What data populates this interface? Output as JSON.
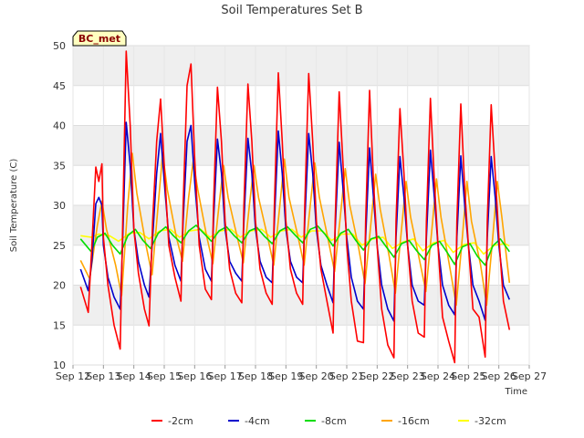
{
  "chart_data": {
    "type": "line",
    "title": "Soil Temperatures Set B",
    "xlabel": "Time",
    "ylabel": "Soil Temperature (C)",
    "ylim": [
      10,
      50
    ],
    "y_ticks": [
      10,
      15,
      20,
      25,
      30,
      35,
      40,
      45,
      50
    ],
    "xlim": [
      12,
      27
    ],
    "x_ticks": [
      12,
      13,
      14,
      15,
      16,
      17,
      18,
      19,
      20,
      21,
      22,
      23,
      24,
      25,
      26,
      27
    ],
    "x_tick_labels": [
      "Sep 12",
      "Sep 13",
      "Sep 14",
      "Sep 15",
      "Sep 16",
      "Sep 17",
      "Sep 18",
      "Sep 19",
      "Sep 20",
      "Sep 21",
      "Sep 22",
      "Sep 23",
      "Sep 24",
      "Sep 25",
      "Sep 26",
      "Sep 27"
    ],
    "grid": true,
    "legend_position": "bottom",
    "badge": "BC_met",
    "series": [
      {
        "name": "-2cm",
        "color": "#ff0000",
        "x": [
          12.25,
          12.5,
          12.62,
          12.75,
          12.85,
          12.95,
          13.0,
          13.15,
          13.35,
          13.55,
          13.62,
          13.75,
          13.88,
          14.0,
          14.15,
          14.35,
          14.5,
          14.62,
          14.75,
          14.88,
          15.0,
          15.15,
          15.35,
          15.55,
          15.62,
          15.75,
          15.88,
          16.0,
          16.15,
          16.35,
          16.55,
          16.62,
          16.75,
          16.88,
          17.0,
          17.15,
          17.35,
          17.55,
          17.62,
          17.75,
          17.88,
          18.0,
          18.15,
          18.35,
          18.55,
          18.62,
          18.75,
          18.88,
          19.0,
          19.15,
          19.35,
          19.55,
          19.62,
          19.75,
          19.88,
          20.0,
          20.15,
          20.35,
          20.55,
          20.62,
          20.75,
          20.88,
          21.0,
          21.15,
          21.35,
          21.55,
          21.62,
          21.75,
          21.88,
          22.0,
          22.15,
          22.35,
          22.55,
          22.62,
          22.75,
          22.88,
          23.0,
          23.15,
          23.35,
          23.55,
          23.62,
          23.75,
          23.88,
          24.0,
          24.15,
          24.35,
          24.55,
          24.62,
          24.75,
          24.88,
          25.0,
          25.15,
          25.35,
          25.55,
          25.62,
          25.75,
          25.88,
          26.0,
          26.15,
          26.35
        ],
        "values": [
          19.8,
          16.6,
          25.0,
          34.8,
          33.0,
          35.2,
          26.0,
          20.0,
          15.0,
          12.0,
          25.0,
          49.3,
          40.0,
          27.0,
          21.5,
          17.0,
          14.9,
          28.0,
          38.0,
          43.3,
          35.0,
          25.0,
          21.0,
          18.0,
          30.0,
          45.0,
          47.7,
          36.0,
          25.0,
          19.5,
          18.2,
          30.0,
          44.8,
          38.0,
          28.0,
          22.0,
          19.0,
          17.8,
          30.0,
          45.2,
          38.0,
          28.0,
          22.0,
          19.0,
          17.6,
          30.0,
          46.6,
          38.0,
          28.0,
          22.0,
          19.0,
          17.6,
          30.0,
          46.5,
          38.0,
          28.0,
          22.0,
          18.0,
          14.0,
          28.0,
          44.2,
          35.0,
          25.0,
          18.0,
          13.0,
          12.8,
          28.0,
          44.4,
          33.0,
          25.0,
          17.0,
          12.5,
          10.9,
          28.0,
          42.1,
          34.0,
          25.0,
          18.0,
          14.0,
          13.5,
          28.0,
          43.4,
          33.0,
          25.0,
          16.0,
          13.0,
          10.3,
          28.0,
          42.7,
          32.0,
          25.0,
          17.0,
          16.0,
          11.0,
          28.0,
          42.6,
          34.0,
          26.0,
          18.0,
          14.4
        ]
      },
      {
        "name": "-4cm",
        "color": "#0000cc",
        "x": [
          12.25,
          12.5,
          12.62,
          12.75,
          12.85,
          12.95,
          13.0,
          13.15,
          13.35,
          13.55,
          13.62,
          13.75,
          13.88,
          14.0,
          14.15,
          14.35,
          14.5,
          14.62,
          14.75,
          14.88,
          15.0,
          15.15,
          15.35,
          15.55,
          15.62,
          15.75,
          15.88,
          16.0,
          16.15,
          16.35,
          16.55,
          16.62,
          16.75,
          16.88,
          17.0,
          17.15,
          17.35,
          17.55,
          17.62,
          17.75,
          17.88,
          18.0,
          18.15,
          18.35,
          18.55,
          18.62,
          18.75,
          18.88,
          19.0,
          19.15,
          19.35,
          19.55,
          19.62,
          19.75,
          19.88,
          20.0,
          20.15,
          20.35,
          20.55,
          20.62,
          20.75,
          20.88,
          21.0,
          21.15,
          21.35,
          21.55,
          21.62,
          21.75,
          21.88,
          22.0,
          22.15,
          22.35,
          22.55,
          22.62,
          22.75,
          22.88,
          23.0,
          23.15,
          23.35,
          23.55,
          23.62,
          23.75,
          23.88,
          24.0,
          24.15,
          24.35,
          24.55,
          24.62,
          24.75,
          24.88,
          25.0,
          25.15,
          25.35,
          25.55,
          25.62,
          25.75,
          25.88,
          26.0,
          26.15,
          26.35
        ],
        "values": [
          22.0,
          19.3,
          23.0,
          30.2,
          31.0,
          30.0,
          25.0,
          21.0,
          18.5,
          17.0,
          24.0,
          40.4,
          35.0,
          27.0,
          23.0,
          20.0,
          18.5,
          26.0,
          34.0,
          39.0,
          33.0,
          26.0,
          22.5,
          20.5,
          28.0,
          38.0,
          40.0,
          33.0,
          26.0,
          22.0,
          20.5,
          28.0,
          38.3,
          34.0,
          27.0,
          23.0,
          21.5,
          20.5,
          28.0,
          38.4,
          34.0,
          27.0,
          23.0,
          21.0,
          20.3,
          28.0,
          39.3,
          34.0,
          27.0,
          23.0,
          21.0,
          20.3,
          28.0,
          39.0,
          34.0,
          27.0,
          22.5,
          20.0,
          17.8,
          27.0,
          37.9,
          32.0,
          26.0,
          21.0,
          18.0,
          17.0,
          26.0,
          37.2,
          31.0,
          25.0,
          20.0,
          17.0,
          15.5,
          26.0,
          36.1,
          31.0,
          25.0,
          20.0,
          18.0,
          17.5,
          26.0,
          36.9,
          31.0,
          25.0,
          20.0,
          17.5,
          16.3,
          26.0,
          36.2,
          30.0,
          25.0,
          20.0,
          18.0,
          15.6,
          26.0,
          36.1,
          31.0,
          25.0,
          20.0,
          18.2
        ]
      },
      {
        "name": "-8cm",
        "color": "#00dd00",
        "x": [
          12.25,
          12.6,
          12.8,
          13.05,
          13.3,
          13.55,
          13.8,
          14.05,
          14.3,
          14.55,
          14.8,
          15.05,
          15.3,
          15.55,
          15.8,
          16.05,
          16.3,
          16.55,
          16.8,
          17.05,
          17.3,
          17.55,
          17.8,
          18.05,
          18.3,
          18.55,
          18.8,
          19.05,
          19.3,
          19.55,
          19.8,
          20.05,
          20.3,
          20.55,
          20.8,
          21.05,
          21.3,
          21.55,
          21.8,
          22.05,
          22.3,
          22.55,
          22.8,
          23.05,
          23.3,
          23.55,
          23.8,
          24.05,
          24.3,
          24.55,
          24.8,
          25.05,
          25.3,
          25.55,
          25.8,
          26.05,
          26.35
        ],
        "values": [
          25.8,
          24.2,
          26.0,
          26.5,
          25.0,
          23.9,
          26.2,
          27.0,
          25.6,
          24.6,
          26.5,
          27.3,
          26.2,
          25.3,
          26.8,
          27.5,
          26.5,
          25.5,
          26.8,
          27.3,
          26.2,
          25.3,
          26.8,
          27.2,
          26.1,
          25.2,
          26.8,
          27.3,
          26.3,
          25.3,
          27.0,
          27.4,
          26.3,
          24.9,
          26.5,
          27.0,
          25.6,
          24.4,
          25.8,
          26.1,
          24.8,
          23.5,
          25.2,
          25.6,
          24.3,
          23.2,
          25.0,
          25.5,
          24.1,
          22.6,
          24.8,
          25.2,
          23.6,
          22.5,
          24.9,
          25.8,
          24.2
        ]
      },
      {
        "name": "-16cm",
        "color": "#ffa500",
        "x": [
          12.25,
          12.55,
          12.8,
          12.95,
          13.1,
          13.4,
          13.6,
          13.8,
          13.95,
          14.1,
          14.4,
          14.6,
          14.8,
          14.95,
          15.1,
          15.4,
          15.6,
          15.8,
          15.95,
          16.1,
          16.4,
          16.6,
          16.8,
          16.95,
          17.1,
          17.4,
          17.6,
          17.8,
          17.95,
          18.1,
          18.4,
          18.6,
          18.8,
          18.95,
          19.1,
          19.4,
          19.6,
          19.8,
          19.95,
          20.1,
          20.4,
          20.6,
          20.8,
          20.95,
          21.1,
          21.4,
          21.6,
          21.8,
          21.95,
          22.1,
          22.4,
          22.6,
          22.8,
          22.95,
          23.1,
          23.4,
          23.6,
          23.8,
          23.95,
          24.1,
          24.4,
          24.6,
          24.8,
          24.95,
          25.1,
          25.4,
          25.6,
          25.8,
          25.95,
          26.1,
          26.35
        ],
        "values": [
          23.1,
          20.8,
          27.5,
          30.5,
          27.0,
          22.5,
          18.7,
          30.0,
          36.5,
          31.5,
          25.0,
          21.3,
          30.0,
          36.5,
          32.0,
          26.0,
          23.0,
          31.0,
          35.5,
          32.0,
          26.0,
          22.7,
          30.0,
          35.0,
          31.0,
          26.0,
          22.8,
          30.0,
          35.0,
          31.0,
          26.0,
          22.5,
          30.0,
          35.8,
          31.0,
          26.0,
          22.5,
          30.0,
          35.3,
          31.0,
          25.5,
          21.7,
          29.0,
          34.6,
          30.0,
          24.5,
          20.2,
          28.0,
          33.9,
          29.5,
          23.5,
          19.0,
          27.0,
          33.0,
          28.5,
          23.0,
          19.2,
          27.0,
          33.3,
          28.5,
          22.0,
          17.5,
          26.0,
          33.0,
          28.0,
          22.5,
          17.5,
          26.0,
          33.0,
          28.5,
          20.3
        ]
      },
      {
        "name": "-32cm",
        "color": "#ffff00",
        "x": [
          12.25,
          12.6,
          12.85,
          13.2,
          13.5,
          13.85,
          14.2,
          14.5,
          14.85,
          15.2,
          15.5,
          15.85,
          16.2,
          16.5,
          16.85,
          17.2,
          17.5,
          17.85,
          18.2,
          18.5,
          18.85,
          19.2,
          19.5,
          19.85,
          20.2,
          20.5,
          20.85,
          21.2,
          21.5,
          21.85,
          22.2,
          22.5,
          22.85,
          23.2,
          23.5,
          23.85,
          24.2,
          24.5,
          24.85,
          25.2,
          25.5,
          25.85,
          26.2,
          26.35
        ],
        "values": [
          26.2,
          26.0,
          26.4,
          26.2,
          25.5,
          26.5,
          26.6,
          25.8,
          26.8,
          27.0,
          26.0,
          26.8,
          27.0,
          26.0,
          26.8,
          27.0,
          26.0,
          26.8,
          27.0,
          26.0,
          26.8,
          27.0,
          26.0,
          26.8,
          26.8,
          25.6,
          26.4,
          26.4,
          25.0,
          25.8,
          26.0,
          24.6,
          25.4,
          25.8,
          24.3,
          25.3,
          25.6,
          24.1,
          25.1,
          25.3,
          23.9,
          25.0,
          25.2,
          24.9
        ]
      }
    ]
  }
}
